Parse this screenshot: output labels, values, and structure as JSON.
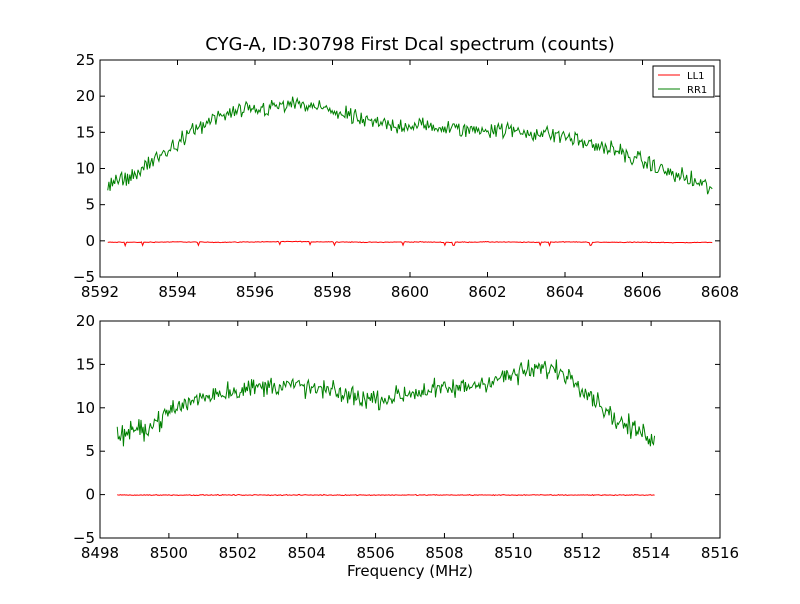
{
  "chart_data": [
    {
      "type": "line",
      "title": "CYG-A, ID:30798 First Dcal spectrum (counts)",
      "xlabel": "",
      "ylabel": "",
      "xlim": [
        8592,
        8608
      ],
      "ylim": [
        -5,
        25
      ],
      "xticks": [
        "8592",
        "8594",
        "8596",
        "8598",
        "8600",
        "8602",
        "8604",
        "8606",
        "8608"
      ],
      "yticks": [
        "−5",
        "0",
        "5",
        "10",
        "15",
        "20",
        "25"
      ],
      "legend": {
        "position": "top-right",
        "entries": [
          "LL1",
          "RR1"
        ]
      },
      "grid": false,
      "series": [
        {
          "name": "LL1",
          "color": "#ff0000",
          "x": [
            8592.2,
            8593,
            8594,
            8595,
            8596,
            8597,
            8598,
            8599,
            8600,
            8601,
            8602,
            8603,
            8604,
            8605,
            8606,
            8607,
            8607.8
          ],
          "y": [
            -0.2,
            -0.2,
            -0.15,
            -0.2,
            -0.15,
            -0.1,
            -0.15,
            -0.2,
            -0.15,
            -0.2,
            -0.15,
            -0.2,
            -0.15,
            -0.2,
            -0.2,
            -0.25,
            -0.2
          ]
        },
        {
          "name": "RR1",
          "color": "#008000",
          "x": [
            8592.2,
            8592.5,
            8593,
            8593.5,
            8594,
            8594.5,
            8595,
            8595.5,
            8596,
            8596.5,
            8597,
            8597.5,
            8598,
            8598.5,
            8599,
            8599.5,
            8600,
            8600.5,
            8601,
            8601.5,
            8602,
            8602.5,
            8603,
            8603.5,
            8604,
            8604.5,
            8605,
            8605.5,
            8606,
            8606.5,
            8607,
            8607.5,
            8607.8
          ],
          "y": [
            7.5,
            8.2,
            9.5,
            11.5,
            13.5,
            15.5,
            17,
            17.8,
            18,
            18.5,
            18.8,
            18.5,
            18,
            17,
            16.3,
            16,
            16,
            15.8,
            15.5,
            15.3,
            15.5,
            15.3,
            15,
            14.8,
            14.5,
            13.5,
            13,
            12,
            11,
            9.8,
            8.8,
            7.8,
            7.3
          ]
        }
      ]
    },
    {
      "type": "line",
      "title": "",
      "xlabel": "Frequency (MHz)",
      "ylabel": "",
      "xlim": [
        8498,
        8516
      ],
      "ylim": [
        -5,
        20
      ],
      "xticks": [
        "8498",
        "8500",
        "8502",
        "8504",
        "8506",
        "8508",
        "8510",
        "8512",
        "8514",
        "8516"
      ],
      "yticks": [
        "−5",
        "0",
        "5",
        "10",
        "15",
        "20"
      ],
      "grid": false,
      "series": [
        {
          "name": "LL1",
          "color": "#ff0000",
          "x": [
            8498.5,
            8499,
            8500,
            8501,
            8502,
            8503,
            8504,
            8505,
            8506,
            8507,
            8508,
            8509,
            8510,
            8511,
            8512,
            8513,
            8514.1
          ],
          "y": [
            -0.05,
            -0.05,
            -0.05,
            -0.05,
            -0.05,
            -0.05,
            -0.05,
            -0.05,
            -0.05,
            -0.05,
            -0.05,
            -0.05,
            -0.05,
            -0.05,
            -0.05,
            -0.05,
            -0.05
          ]
        },
        {
          "name": "RR1",
          "color": "#008000",
          "x": [
            8498.5,
            8499,
            8499.5,
            8500,
            8500.5,
            8501,
            8501.5,
            8502,
            8502.5,
            8503,
            8503.5,
            8504,
            8504.5,
            8505,
            8505.5,
            8506,
            8506.5,
            8507,
            8507.5,
            8508,
            8508.5,
            8509,
            8509.5,
            8510,
            8510.5,
            8511,
            8511.5,
            8512,
            8512.5,
            8513,
            8513.5,
            8514.1
          ],
          "y": [
            6.8,
            7.2,
            8,
            9.5,
            10.5,
            11.3,
            11.8,
            12,
            12.3,
            12.6,
            12.6,
            12.3,
            12,
            11.6,
            11.2,
            11,
            11.2,
            11.7,
            12,
            12.1,
            12.3,
            12.8,
            13.3,
            13.8,
            14.3,
            14.6,
            14,
            12.5,
            10.5,
            8.5,
            7.5,
            6.5
          ]
        }
      ]
    }
  ]
}
